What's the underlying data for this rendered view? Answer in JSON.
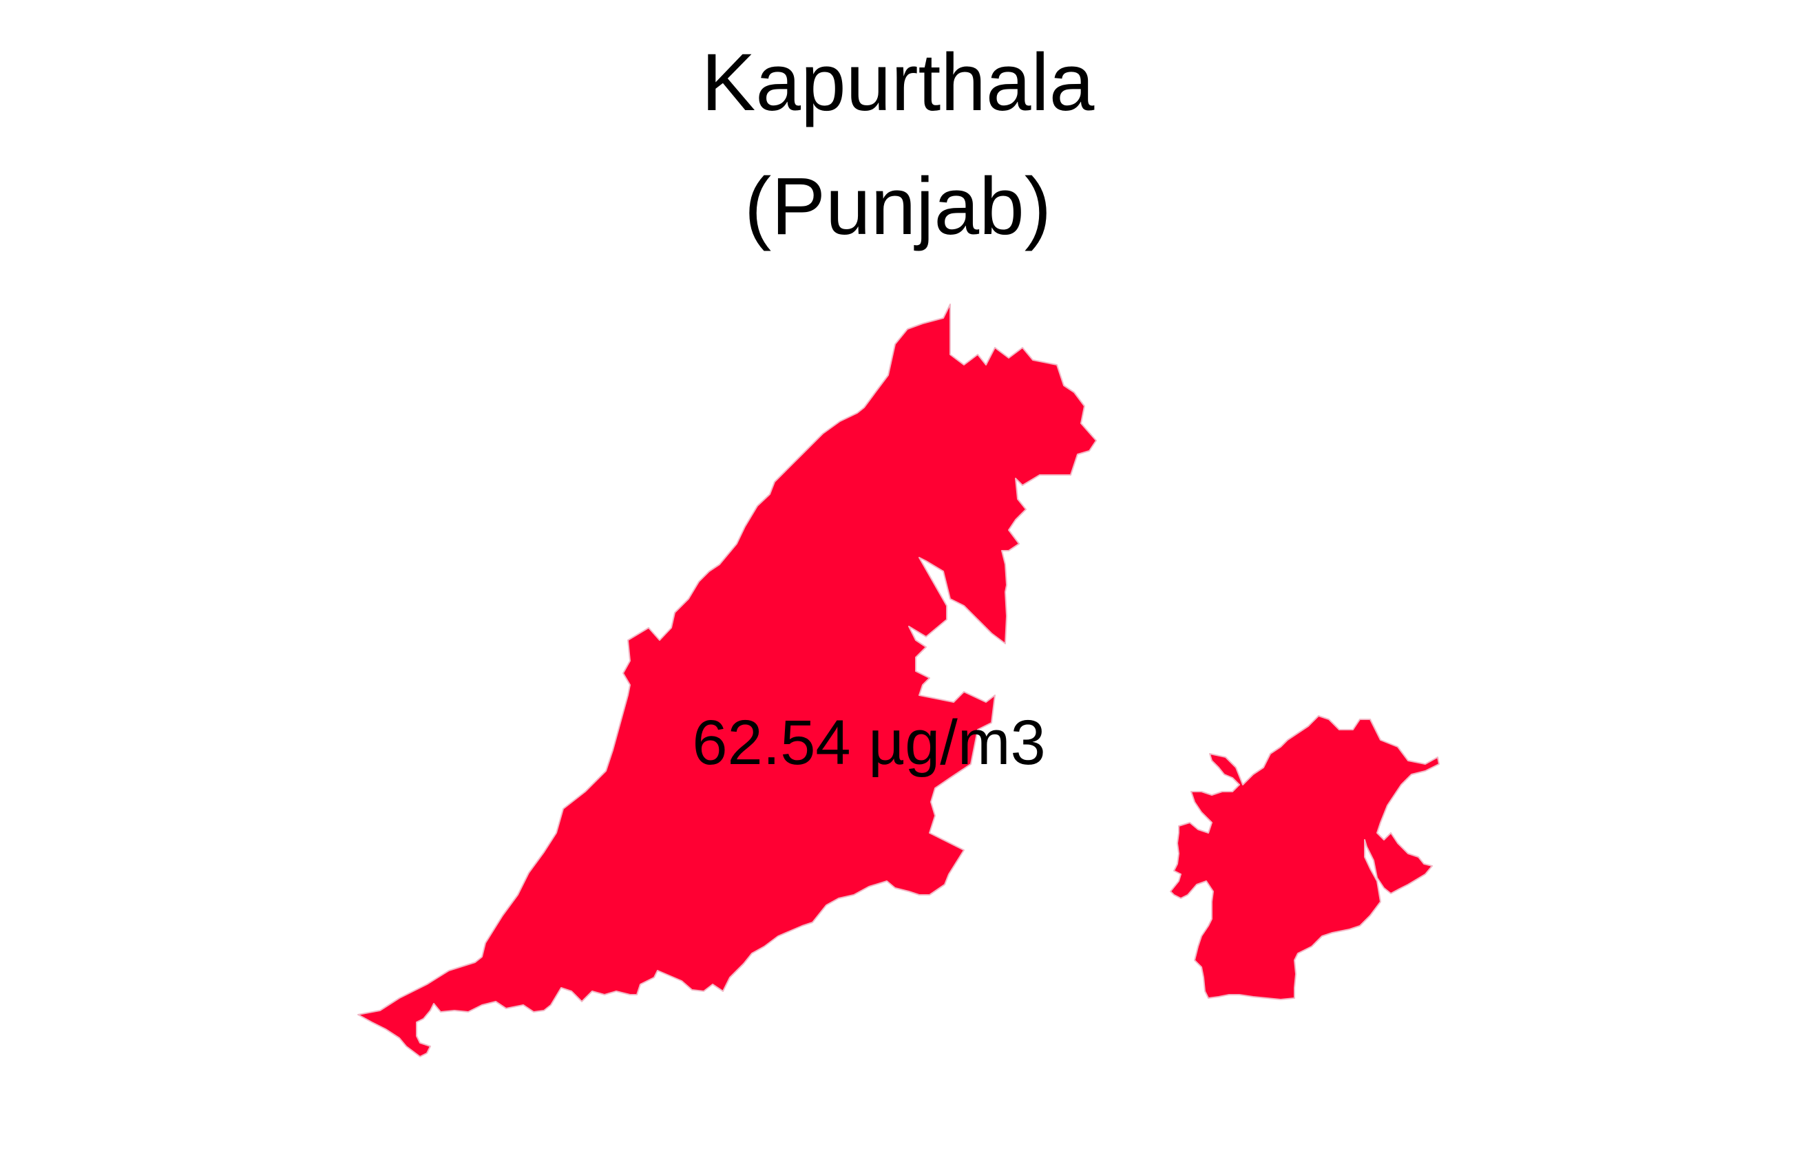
{
  "title": {
    "line1": "Kapurthala",
    "line2": "(Punjab)"
  },
  "district": {
    "name": "Kapurthala",
    "state": "Punjab",
    "value_label": "62.54 µg/m3",
    "value": 62.54,
    "unit": "µg/m3"
  },
  "colors": {
    "fill": "#FF0033",
    "border": "#F2B8C6",
    "background": "#FFFFFF",
    "text": "#000000"
  }
}
